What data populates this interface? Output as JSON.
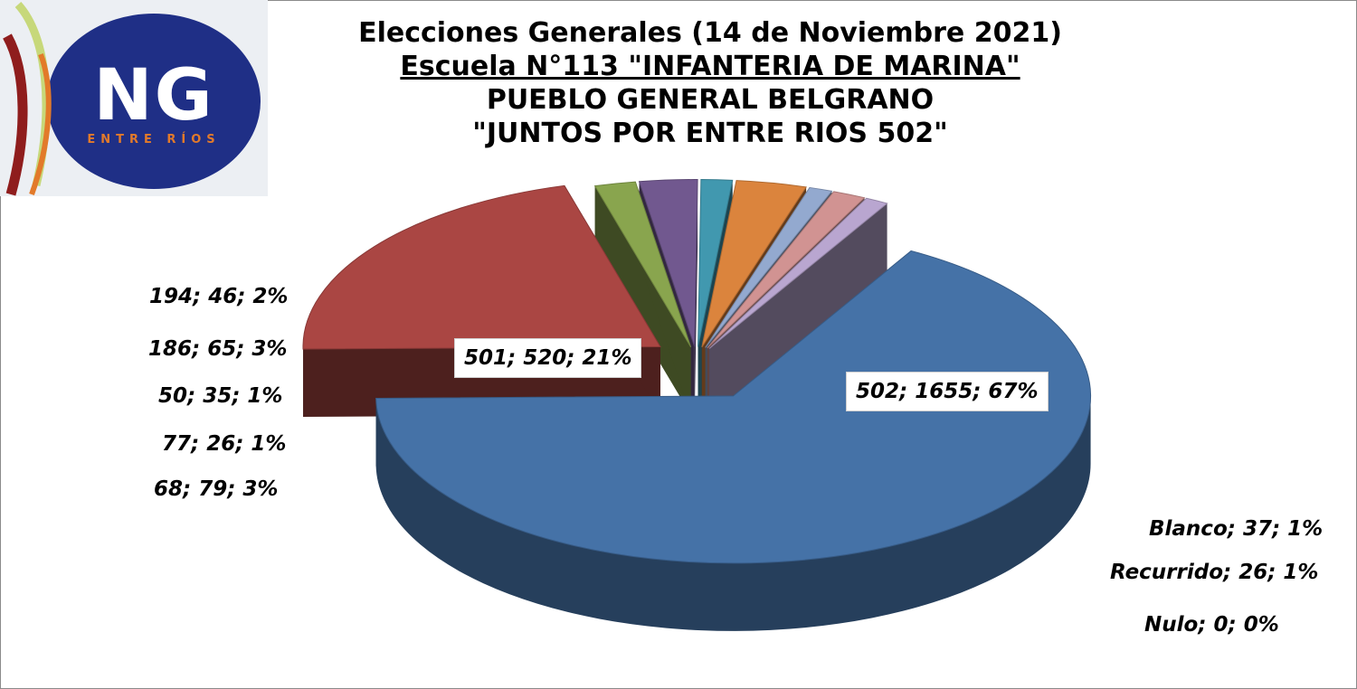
{
  "logo": {
    "letters": "NG",
    "subtitle": "ENTRE RÍOS",
    "colors": {
      "oval": "#1f2f86",
      "bg": "#eceff3",
      "ring1": "#c7d87a",
      "ring2": "#8f1d1d",
      "ring3": "#e27a2a"
    }
  },
  "chart_data": {
    "type": "pie",
    "title": "Elecciones Generales (14 de Noviembre 2021)",
    "subtitle_lines": [
      "Escuela N°113 \"INFANTERIA DE MARINA\"",
      "PUEBLO GENERAL BELGRANO",
      "\"JUNTOS POR ENTRE RIOS 502\""
    ],
    "slices": [
      {
        "name": "502",
        "value": 1655,
        "percent": 67,
        "label": "502; 1655; 67%",
        "color": "#4572a7"
      },
      {
        "name": "501",
        "value": 520,
        "percent": 21,
        "label": "501; 520; 21%",
        "color": "#aa4643"
      },
      {
        "name": "194",
        "value": 46,
        "percent": 2,
        "label": "194; 46; 2%",
        "color": "#89a54e"
      },
      {
        "name": "186",
        "value": 65,
        "percent": 3,
        "label": "186; 65; 3%",
        "color": "#71588f"
      },
      {
        "name": "50",
        "value": 35,
        "percent": 1,
        "label": "50; 35; 1%",
        "color": "#4198af"
      },
      {
        "name": "68",
        "value": 79,
        "percent": 3,
        "label": "68; 79; 3%",
        "color": "#db843d"
      },
      {
        "name": "77",
        "value": 26,
        "percent": 1,
        "label": "77; 26; 1%",
        "color": "#93a9cf"
      },
      {
        "name": "Blanco",
        "value": 37,
        "percent": 1,
        "label": "Blanco; 37; 1%",
        "color": "#d19392"
      },
      {
        "name": "Recurrido",
        "value": 26,
        "percent": 1,
        "label": "Recurrido; 26; 1%",
        "color": "#b9a6d0"
      },
      {
        "name": "Nulo",
        "value": 0,
        "percent": 0,
        "label": "Nulo; 0; 0%",
        "color": "#9bbb59"
      }
    ],
    "style": "3d-exploded",
    "legend": "none"
  }
}
